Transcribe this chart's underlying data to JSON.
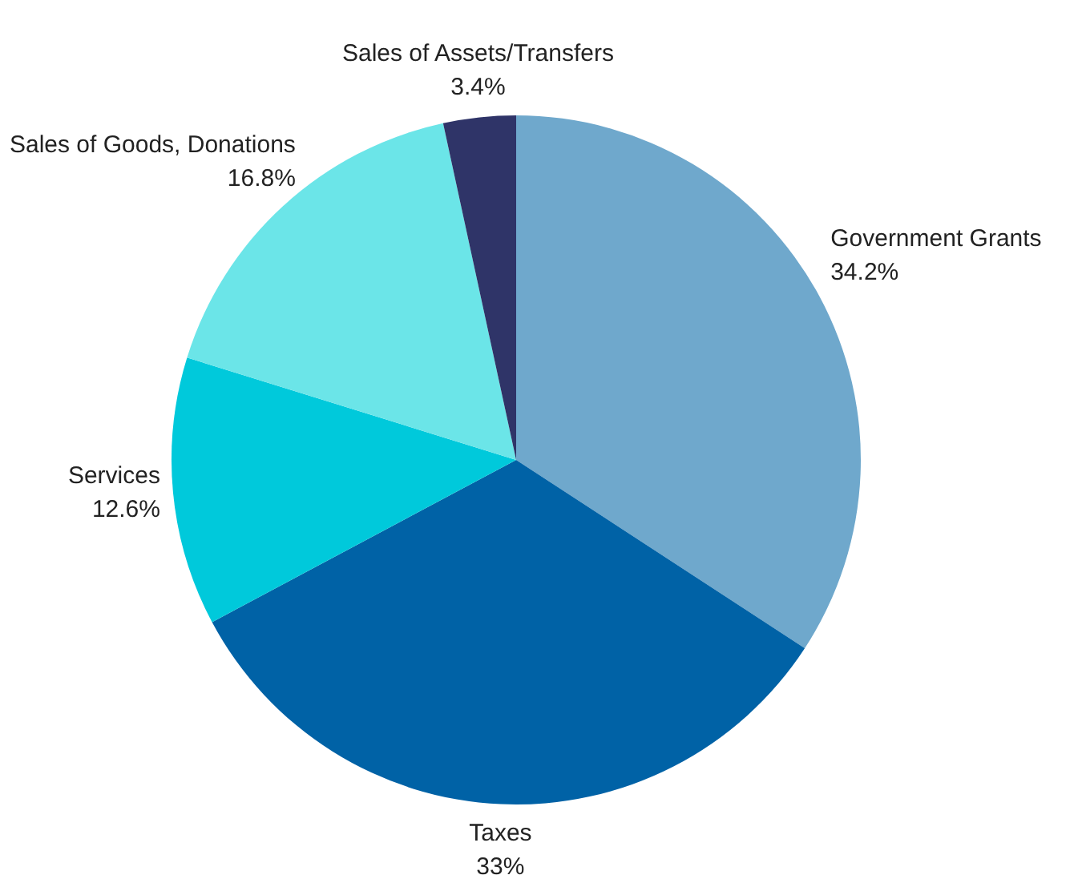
{
  "chart_data": {
    "type": "pie",
    "categories": [
      "Government Grants",
      "Taxes",
      "Services",
      "Sales of Goods, Donations",
      "Sales of Assets/Transfers"
    ],
    "values": [
      34.2,
      33,
      12.6,
      16.8,
      3.4
    ],
    "colors": [
      "#6fa8cc",
      "#0062a6",
      "#00c9db",
      "#6be5e8",
      "#2f3468"
    ],
    "value_labels": [
      "34.2%",
      "33%",
      "12.6%",
      "16.8%",
      "3.4%"
    ]
  }
}
